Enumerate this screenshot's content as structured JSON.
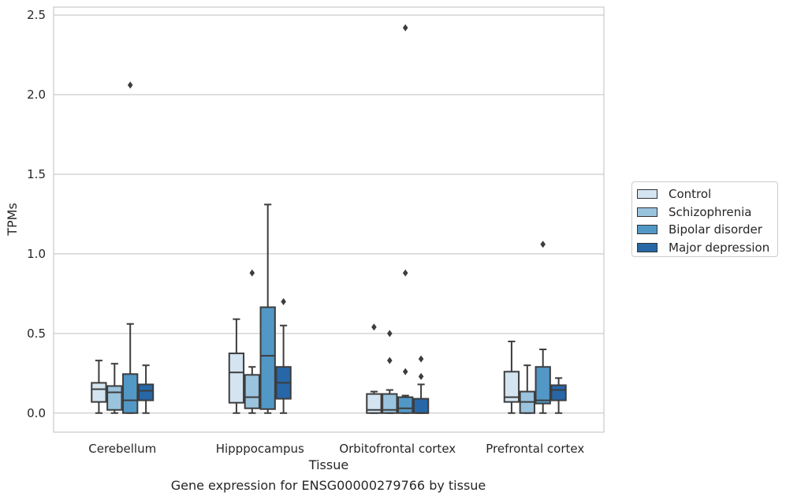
{
  "chart_data": {
    "type": "box",
    "xlabel": "Tissue",
    "ylabel": "TPMs",
    "caption": "Gene expression for ENSG00000279766 by tissue",
    "ylim": [
      -0.12,
      2.55
    ],
    "yticks": [
      "0.0",
      "0.5",
      "1.0",
      "1.5",
      "2.0",
      "2.5"
    ],
    "ytick_values": [
      0.0,
      0.5,
      1.0,
      1.5,
      2.0,
      2.5
    ],
    "categories": [
      "Cerebellum",
      "Hipppocampus",
      "Orbitofrontal cortex",
      "Prefrontal cortex"
    ],
    "grid": true,
    "legend_position": "right",
    "series": [
      {
        "name": "Control",
        "color": "#d4e4f1",
        "boxes": [
          {
            "min": 0.0,
            "q1": 0.07,
            "median": 0.15,
            "q3": 0.19,
            "max": 0.33,
            "outliers": []
          },
          {
            "min": 0.0,
            "q1": 0.065,
            "median": 0.255,
            "q3": 0.375,
            "max": 0.59,
            "outliers": []
          },
          {
            "min": 0.0,
            "q1": 0.0,
            "median": 0.02,
            "q3": 0.12,
            "max": 0.135,
            "outliers": [
              0.54
            ]
          },
          {
            "min": 0.0,
            "q1": 0.07,
            "median": 0.1,
            "q3": 0.26,
            "max": 0.45,
            "outliers": []
          }
        ]
      },
      {
        "name": "Schizophrenia",
        "color": "#9ac3de",
        "boxes": [
          {
            "min": 0.0,
            "q1": 0.02,
            "median": 0.13,
            "q3": 0.17,
            "max": 0.31,
            "outliers": []
          },
          {
            "min": 0.0,
            "q1": 0.03,
            "median": 0.1,
            "q3": 0.24,
            "max": 0.29,
            "outliers": [
              0.88
            ]
          },
          {
            "min": 0.0,
            "q1": 0.0,
            "median": 0.02,
            "q3": 0.12,
            "max": 0.145,
            "outliers": [
              0.5,
              0.33
            ]
          },
          {
            "min": 0.0,
            "q1": 0.0,
            "median": 0.07,
            "q3": 0.135,
            "max": 0.3,
            "outliers": []
          }
        ]
      },
      {
        "name": "Bipolar disorder",
        "color": "#5298c6",
        "boxes": [
          {
            "min": 0.0,
            "q1": 0.0,
            "median": 0.08,
            "q3": 0.245,
            "max": 0.56,
            "outliers": [
              2.06
            ]
          },
          {
            "min": 0.0,
            "q1": 0.025,
            "median": 0.36,
            "q3": 0.665,
            "max": 1.31,
            "outliers": []
          },
          {
            "min": 0.0,
            "q1": 0.0,
            "median": 0.03,
            "q3": 0.1,
            "max": 0.11,
            "outliers": [
              2.42,
              0.88,
              0.26
            ]
          },
          {
            "min": 0.0,
            "q1": 0.06,
            "median": 0.08,
            "q3": 0.29,
            "max": 0.4,
            "outliers": [
              1.06
            ]
          }
        ]
      },
      {
        "name": "Major depression",
        "color": "#2767a8",
        "boxes": [
          {
            "min": 0.0,
            "q1": 0.08,
            "median": 0.14,
            "q3": 0.18,
            "max": 0.3,
            "outliers": []
          },
          {
            "min": 0.0,
            "q1": 0.09,
            "median": 0.19,
            "q3": 0.29,
            "max": 0.55,
            "outliers": [
              0.7
            ]
          },
          {
            "min": 0.0,
            "q1": 0.0,
            "median": 0.0,
            "q3": 0.09,
            "max": 0.18,
            "outliers": [
              0.34,
              0.23
            ]
          },
          {
            "min": 0.0,
            "q1": 0.08,
            "median": 0.145,
            "q3": 0.175,
            "max": 0.22,
            "outliers": []
          }
        ]
      }
    ]
  }
}
